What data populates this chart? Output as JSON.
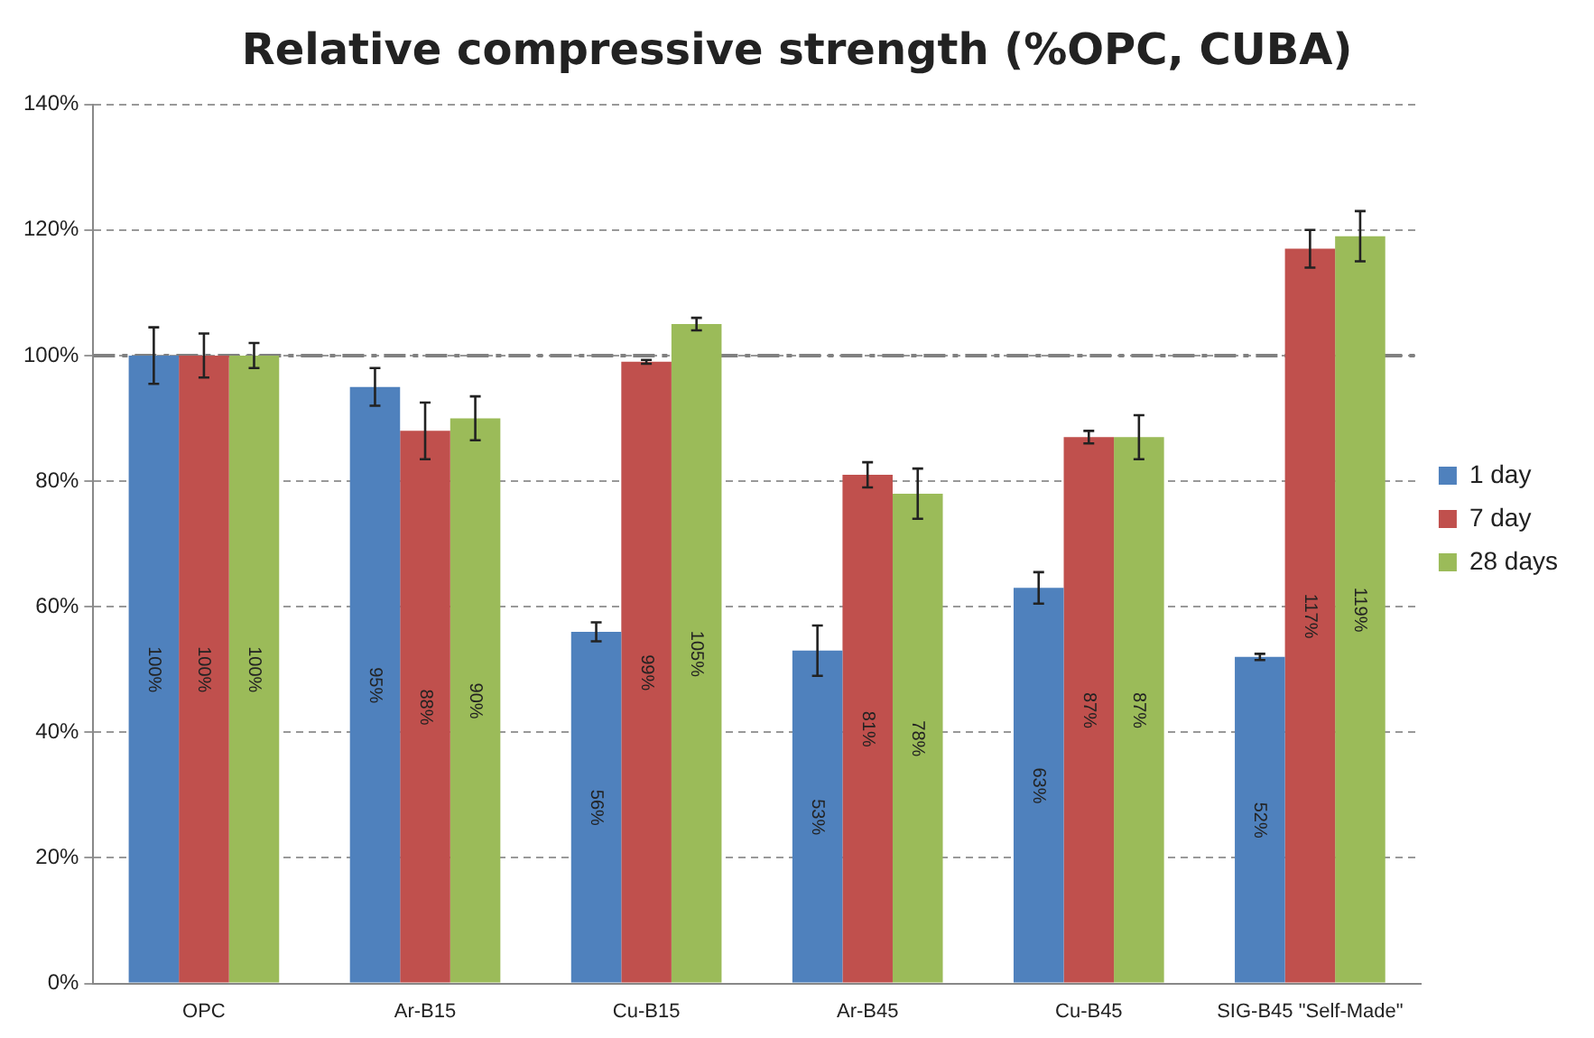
{
  "chart_data": {
    "type": "bar",
    "title": "Relative compressive strength (%OPC, CUBA)",
    "categories": [
      "OPC",
      "Ar-B15",
      "Cu-B15",
      "Ar-B45",
      "Cu-B45",
      "SIG-B45 \"Self-Made\""
    ],
    "series": [
      {
        "name": "1 day",
        "color": "#4f81bd",
        "values": [
          100,
          95,
          56,
          53,
          63,
          52
        ],
        "value_labels": [
          "100%",
          "95%",
          "56%",
          "53%",
          "63%",
          "52%"
        ],
        "errors": [
          4.5,
          3,
          1.5,
          4,
          2.5,
          0.5
        ]
      },
      {
        "name": "7 day",
        "color": "#c0504d",
        "values": [
          100,
          88,
          99,
          81,
          87,
          117
        ],
        "value_labels": [
          "100%",
          "88%",
          "99%",
          "81%",
          "87%",
          "117%"
        ],
        "errors": [
          3.5,
          4.5,
          0.3,
          2,
          1,
          3
        ]
      },
      {
        "name": "28 days",
        "color": "#9bbb59",
        "values": [
          100,
          90,
          105,
          78,
          87,
          119
        ],
        "value_labels": [
          "100%",
          "90%",
          "105%",
          "78%",
          "87%",
          "119%"
        ],
        "errors": [
          2,
          3.5,
          1,
          4,
          3.5,
          4
        ]
      }
    ],
    "ylim": [
      0,
      140
    ],
    "yticks": [
      {
        "value": 0,
        "label": "0%"
      },
      {
        "value": 20,
        "label": "20%"
      },
      {
        "value": 40,
        "label": "40%"
      },
      {
        "value": 60,
        "label": "60%"
      },
      {
        "value": 80,
        "label": "80%"
      },
      {
        "value": 100,
        "label": "100%"
      },
      {
        "value": 120,
        "label": "120%"
      },
      {
        "value": 140,
        "label": "140%"
      }
    ],
    "ref_lines": [
      {
        "axis": "y",
        "value": 100,
        "color": "#808080",
        "line_style": "dashed"
      }
    ],
    "grid": "y",
    "legend": "right"
  }
}
